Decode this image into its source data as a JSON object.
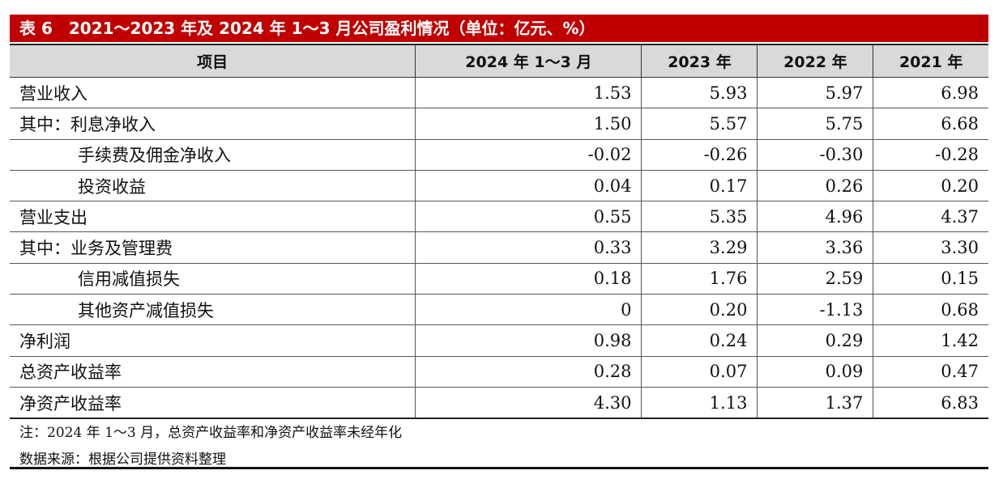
{
  "title": "表 6　2021～2023 年及 2024 年 1～3 月公司盈利情况（单位：亿元、%）",
  "table": {
    "header": [
      "项目",
      "2024 年 1～3 月",
      "2023 年",
      "2022 年",
      "2021 年"
    ],
    "rows": [
      [
        "营业收入",
        "1.53",
        "5.93",
        "5.97",
        "6.98"
      ],
      [
        "其中：利息净收入",
        "1.50",
        "5.57",
        "5.75",
        "6.68"
      ],
      [
        "手续费及佣金净收入",
        "-0.02",
        "-0.26",
        "-0.30",
        "-0.28"
      ],
      [
        "投资收益",
        "0.04",
        "0.17",
        "0.26",
        "0.20"
      ],
      [
        "营业支出",
        "0.55",
        "5.35",
        "4.96",
        "4.37"
      ],
      [
        "其中：业务及管理费",
        "0.33",
        "3.29",
        "3.36",
        "3.30"
      ],
      [
        "信用减值损失",
        "0.18",
        "1.76",
        "2.59",
        "0.15"
      ],
      [
        "其他资产减值损失",
        "0",
        "0.20",
        "-1.13",
        "0.68"
      ],
      [
        "净利润",
        "0.98",
        "0.24",
        "0.29",
        "1.42"
      ],
      [
        "总资产收益率",
        "0.28",
        "0.07",
        "0.09",
        "0.47"
      ],
      [
        "净资产收益率",
        "4.30",
        "1.13",
        "1.37",
        "6.83"
      ]
    ]
  },
  "note": "注：2024 年 1～3 月，总资产收益率和净资产收益率未经年化",
  "source": "数据来源：根据公司提供资料整理"
}
